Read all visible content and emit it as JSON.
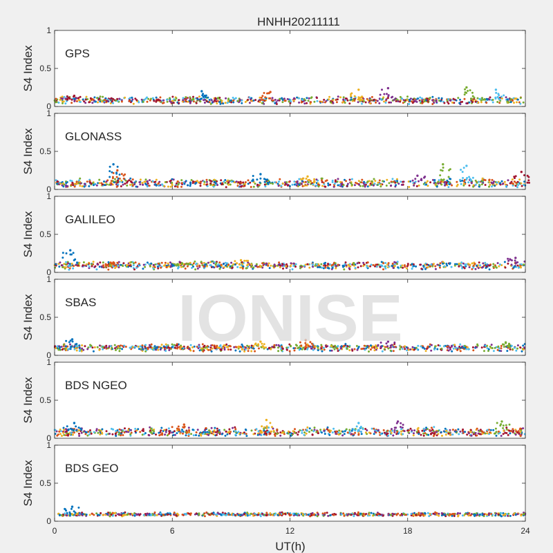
{
  "figure": {
    "title": "HNHH20211111",
    "xlabel": "UT(h)",
    "watermark": "IONISE"
  },
  "chart_data": {
    "type": "scatter",
    "title": "HNHH20211111",
    "xlabel": "UT(h)",
    "ylabel": "S4 Index",
    "xlim": [
      0,
      24
    ],
    "ylim": [
      0,
      1
    ],
    "xticks": [
      0,
      6,
      12,
      18,
      24
    ],
    "yticks": [
      0,
      0.5,
      1
    ],
    "grid": false,
    "series_colors": [
      "#0072BD",
      "#D95319",
      "#EDB120",
      "#7E2F8E",
      "#77AC30",
      "#4DBEEE",
      "#A2142F"
    ],
    "panels": [
      {
        "label": "GPS",
        "ylabel": "S4 Index",
        "baseline": 0.08,
        "spread": 0.04,
        "features": [
          [
            7.5,
            0.2
          ],
          [
            11.0,
            0.19
          ],
          [
            15.5,
            0.22
          ],
          [
            17.0,
            0.24
          ],
          [
            21.0,
            0.25
          ],
          [
            22.5,
            0.22
          ],
          [
            1.0,
            0.14
          ]
        ]
      },
      {
        "label": "GLONASS",
        "ylabel": "S4 Index",
        "baseline": 0.08,
        "spread": 0.05,
        "features": [
          [
            3.0,
            0.33
          ],
          [
            3.2,
            0.25
          ],
          [
            12.9,
            0.17
          ],
          [
            18.5,
            0.18
          ],
          [
            19.8,
            0.33
          ],
          [
            21.0,
            0.31
          ],
          [
            23.8,
            0.23
          ],
          [
            10.5,
            0.2
          ]
        ]
      },
      {
        "label": "GALILEO",
        "ylabel": "S4 Index",
        "baseline": 0.09,
        "spread": 0.04,
        "features": [
          [
            0.8,
            0.29
          ],
          [
            3.0,
            0.13
          ],
          [
            9.5,
            0.16
          ],
          [
            23.5,
            0.19
          ],
          [
            6.5,
            0.12
          ]
        ]
      },
      {
        "label": "SBAS",
        "ylabel": "S4 Index",
        "baseline": 0.1,
        "spread": 0.04,
        "features": [
          [
            0.9,
            0.21
          ],
          [
            12.8,
            0.2
          ],
          [
            10.5,
            0.18
          ],
          [
            17.0,
            0.18
          ],
          [
            23.0,
            0.17
          ]
        ]
      },
      {
        "label": "BDS NGEO",
        "ylabel": "S4 Index",
        "baseline": 0.08,
        "spread": 0.05,
        "features": [
          [
            1.0,
            0.2
          ],
          [
            6.6,
            0.18
          ],
          [
            10.8,
            0.24
          ],
          [
            17.5,
            0.22
          ],
          [
            22.8,
            0.22
          ],
          [
            15.5,
            0.2
          ]
        ]
      },
      {
        "label": "BDS GEO",
        "ylabel": "S4 Index",
        "baseline": 0.09,
        "spread": 0.02,
        "features": [
          [
            0.9,
            0.19
          ]
        ]
      }
    ]
  }
}
